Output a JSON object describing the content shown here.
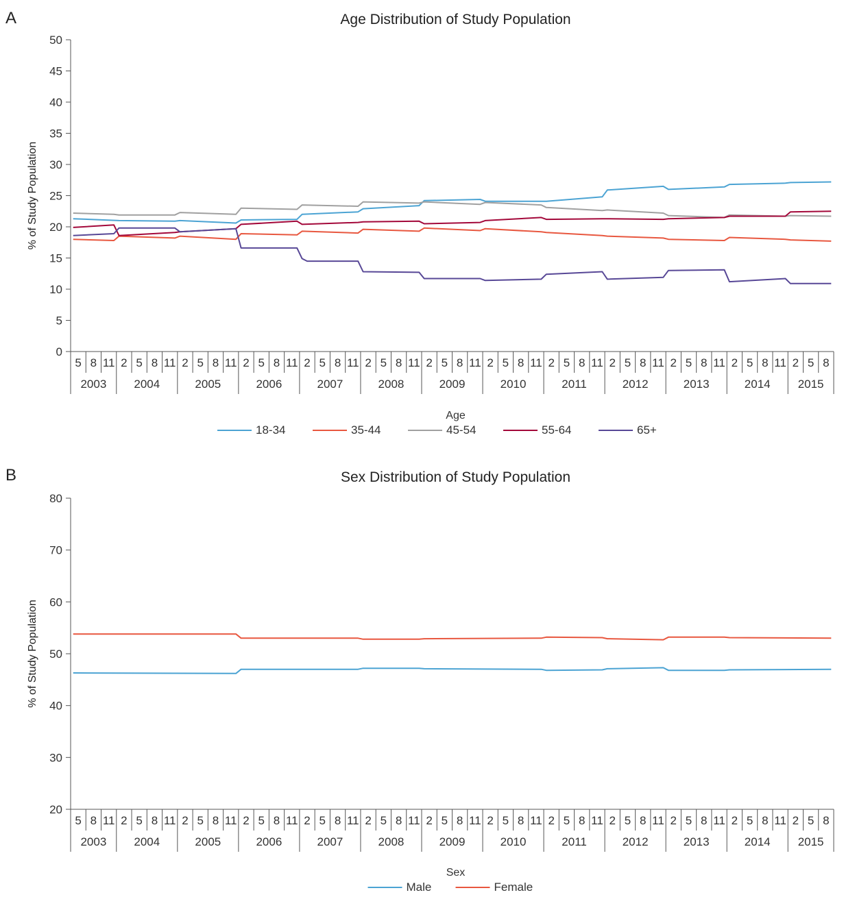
{
  "panels": [
    {
      "letter": "A"
    },
    {
      "letter": "B"
    }
  ],
  "chart_data": [
    {
      "type": "line",
      "title": "Age Distribution of Study Population",
      "xlabel": "",
      "ylabel": "% of Study Population",
      "ylim": [
        0,
        50
      ],
      "yticks": [
        0,
        5,
        10,
        15,
        20,
        25,
        30,
        35,
        40,
        45,
        50
      ],
      "x_start": {
        "year": 2003,
        "month": 4
      },
      "x_end": {
        "year": 2015,
        "month": 9
      },
      "x_month_ticks": [
        2,
        5,
        8,
        11
      ],
      "x_years": [
        "2003",
        "2004",
        "2005",
        "2006",
        "2007",
        "2008",
        "2009",
        "2010",
        "2011",
        "2012",
        "2013",
        "2014",
        "2015"
      ],
      "legend_title": "Age",
      "legend_position": "bottom",
      "grid": false,
      "series": [
        {
          "name": "18-34",
          "color": "#4ba3d3",
          "points": [
            [
              "2003-04",
              21.3
            ],
            [
              "2004-01",
              21.0
            ],
            [
              "2004-12",
              20.9
            ],
            [
              "2005-01",
              21.0
            ],
            [
              "2005-12",
              20.6
            ],
            [
              "2006-01",
              21.1
            ],
            [
              "2006-12",
              21.2
            ],
            [
              "2007-01",
              22.0
            ],
            [
              "2007-12",
              22.4
            ],
            [
              "2008-01",
              22.9
            ],
            [
              "2008-12",
              23.4
            ],
            [
              "2009-01",
              24.2
            ],
            [
              "2009-12",
              24.4
            ],
            [
              "2010-01",
              24.1
            ],
            [
              "2010-12",
              24.1
            ],
            [
              "2011-01",
              24.1
            ],
            [
              "2011-12",
              24.8
            ],
            [
              "2012-01",
              25.9
            ],
            [
              "2012-12",
              26.5
            ],
            [
              "2013-01",
              26.0
            ],
            [
              "2013-12",
              26.4
            ],
            [
              "2014-01",
              26.8
            ],
            [
              "2014-12",
              27.0
            ],
            [
              "2015-01",
              27.1
            ],
            [
              "2015-09",
              27.2
            ]
          ]
        },
        {
          "name": "35-44",
          "color": "#e8573f",
          "points": [
            [
              "2003-04",
              18.0
            ],
            [
              "2003-12",
              17.8
            ],
            [
              "2004-01",
              18.5
            ],
            [
              "2004-12",
              18.2
            ],
            [
              "2005-01",
              18.5
            ],
            [
              "2005-12",
              18.0
            ],
            [
              "2006-01",
              18.9
            ],
            [
              "2006-12",
              18.7
            ],
            [
              "2007-01",
              19.3
            ],
            [
              "2007-12",
              19.0
            ],
            [
              "2008-01",
              19.6
            ],
            [
              "2008-12",
              19.3
            ],
            [
              "2009-01",
              19.8
            ],
            [
              "2009-12",
              19.4
            ],
            [
              "2010-01",
              19.7
            ],
            [
              "2010-12",
              19.2
            ],
            [
              "2011-01",
              19.1
            ],
            [
              "2011-12",
              18.6
            ],
            [
              "2012-01",
              18.5
            ],
            [
              "2012-12",
              18.2
            ],
            [
              "2013-01",
              18.0
            ],
            [
              "2013-12",
              17.8
            ],
            [
              "2014-01",
              18.3
            ],
            [
              "2014-12",
              18.0
            ],
            [
              "2015-01",
              17.9
            ],
            [
              "2015-09",
              17.7
            ]
          ]
        },
        {
          "name": "45-54",
          "color": "#a0a0a0",
          "points": [
            [
              "2003-04",
              22.2
            ],
            [
              "2003-12",
              22.0
            ],
            [
              "2004-01",
              21.9
            ],
            [
              "2004-12",
              21.9
            ],
            [
              "2005-01",
              22.3
            ],
            [
              "2005-12",
              22.0
            ],
            [
              "2006-01",
              23.0
            ],
            [
              "2006-12",
              22.8
            ],
            [
              "2007-01",
              23.5
            ],
            [
              "2007-12",
              23.3
            ],
            [
              "2008-01",
              24.0
            ],
            [
              "2008-12",
              23.8
            ],
            [
              "2009-01",
              24.0
            ],
            [
              "2009-12",
              23.6
            ],
            [
              "2010-01",
              23.9
            ],
            [
              "2010-12",
              23.5
            ],
            [
              "2011-01",
              23.1
            ],
            [
              "2011-12",
              22.6
            ],
            [
              "2012-01",
              22.7
            ],
            [
              "2012-12",
              22.2
            ],
            [
              "2013-01",
              21.8
            ],
            [
              "2013-12",
              21.5
            ],
            [
              "2014-01",
              21.9
            ],
            [
              "2014-12",
              21.7
            ],
            [
              "2015-01",
              21.8
            ],
            [
              "2015-09",
              21.7
            ]
          ]
        },
        {
          "name": "55-64",
          "color": "#a3083a",
          "points": [
            [
              "2003-04",
              19.9
            ],
            [
              "2003-12",
              20.3
            ],
            [
              "2004-01",
              18.6
            ],
            [
              "2004-12",
              19.1
            ],
            [
              "2005-01",
              19.2
            ],
            [
              "2005-12",
              19.7
            ],
            [
              "2006-01",
              20.4
            ],
            [
              "2006-12",
              20.9
            ],
            [
              "2007-01",
              20.4
            ],
            [
              "2007-12",
              20.7
            ],
            [
              "2008-01",
              20.8
            ],
            [
              "2008-12",
              20.9
            ],
            [
              "2009-01",
              20.5
            ],
            [
              "2009-12",
              20.7
            ],
            [
              "2010-01",
              21.0
            ],
            [
              "2010-12",
              21.5
            ],
            [
              "2011-01",
              21.2
            ],
            [
              "2011-12",
              21.3
            ],
            [
              "2012-01",
              21.3
            ],
            [
              "2012-12",
              21.2
            ],
            [
              "2013-01",
              21.3
            ],
            [
              "2013-12",
              21.5
            ],
            [
              "2014-01",
              21.7
            ],
            [
              "2014-12",
              21.7
            ],
            [
              "2015-01",
              22.4
            ],
            [
              "2015-09",
              22.5
            ]
          ]
        },
        {
          "name": "65+",
          "color": "#574796",
          "points": [
            [
              "2003-04",
              18.6
            ],
            [
              "2003-12",
              18.9
            ],
            [
              "2004-01",
              19.8
            ],
            [
              "2004-12",
              19.8
            ],
            [
              "2005-01",
              19.2
            ],
            [
              "2005-12",
              19.7
            ],
            [
              "2006-01",
              16.6
            ],
            [
              "2006-12",
              16.6
            ],
            [
              "2007-01",
              14.9
            ],
            [
              "2007-02",
              14.5
            ],
            [
              "2007-12",
              14.5
            ],
            [
              "2008-01",
              12.8
            ],
            [
              "2008-12",
              12.7
            ],
            [
              "2009-01",
              11.7
            ],
            [
              "2009-12",
              11.7
            ],
            [
              "2010-01",
              11.4
            ],
            [
              "2010-12",
              11.6
            ],
            [
              "2011-01",
              12.4
            ],
            [
              "2011-12",
              12.8
            ],
            [
              "2012-01",
              11.6
            ],
            [
              "2012-12",
              11.9
            ],
            [
              "2013-01",
              13.0
            ],
            [
              "2013-12",
              13.1
            ],
            [
              "2014-01",
              11.2
            ],
            [
              "2014-12",
              11.7
            ],
            [
              "2015-01",
              10.9
            ],
            [
              "2015-09",
              10.9
            ]
          ]
        }
      ]
    },
    {
      "type": "line",
      "title": "Sex Distribution of Study Population",
      "xlabel": "",
      "ylabel": "% of Study Population",
      "ylim": [
        20,
        80
      ],
      "yticks": [
        20,
        30,
        40,
        50,
        60,
        70,
        80
      ],
      "x_start": {
        "year": 2003,
        "month": 4
      },
      "x_end": {
        "year": 2015,
        "month": 9
      },
      "x_month_ticks": [
        2,
        5,
        8,
        11
      ],
      "x_years": [
        "2003",
        "2004",
        "2005",
        "2006",
        "2007",
        "2008",
        "2009",
        "2010",
        "2011",
        "2012",
        "2013",
        "2014",
        "2015"
      ],
      "legend_title": "Sex",
      "legend_position": "bottom",
      "grid": false,
      "series": [
        {
          "name": "Male",
          "color": "#4ba3d3",
          "points": [
            [
              "2003-04",
              46.3
            ],
            [
              "2005-12",
              46.2
            ],
            [
              "2006-01",
              47.0
            ],
            [
              "2007-12",
              47.0
            ],
            [
              "2008-01",
              47.2
            ],
            [
              "2008-12",
              47.2
            ],
            [
              "2009-01",
              47.1
            ],
            [
              "2010-12",
              47.0
            ],
            [
              "2011-01",
              46.8
            ],
            [
              "2011-12",
              46.9
            ],
            [
              "2012-01",
              47.1
            ],
            [
              "2012-12",
              47.3
            ],
            [
              "2013-01",
              46.8
            ],
            [
              "2013-12",
              46.8
            ],
            [
              "2014-01",
              46.9
            ],
            [
              "2015-09",
              47.0
            ]
          ]
        },
        {
          "name": "Female",
          "color": "#e8573f",
          "points": [
            [
              "2003-04",
              53.8
            ],
            [
              "2005-12",
              53.8
            ],
            [
              "2006-01",
              53.0
            ],
            [
              "2007-12",
              53.0
            ],
            [
              "2008-01",
              52.8
            ],
            [
              "2008-12",
              52.8
            ],
            [
              "2009-01",
              52.9
            ],
            [
              "2010-12",
              53.0
            ],
            [
              "2011-01",
              53.2
            ],
            [
              "2011-12",
              53.1
            ],
            [
              "2012-01",
              52.9
            ],
            [
              "2012-12",
              52.7
            ],
            [
              "2013-01",
              53.2
            ],
            [
              "2013-12",
              53.2
            ],
            [
              "2014-01",
              53.1
            ],
            [
              "2015-09",
              53.0
            ]
          ]
        }
      ]
    }
  ]
}
